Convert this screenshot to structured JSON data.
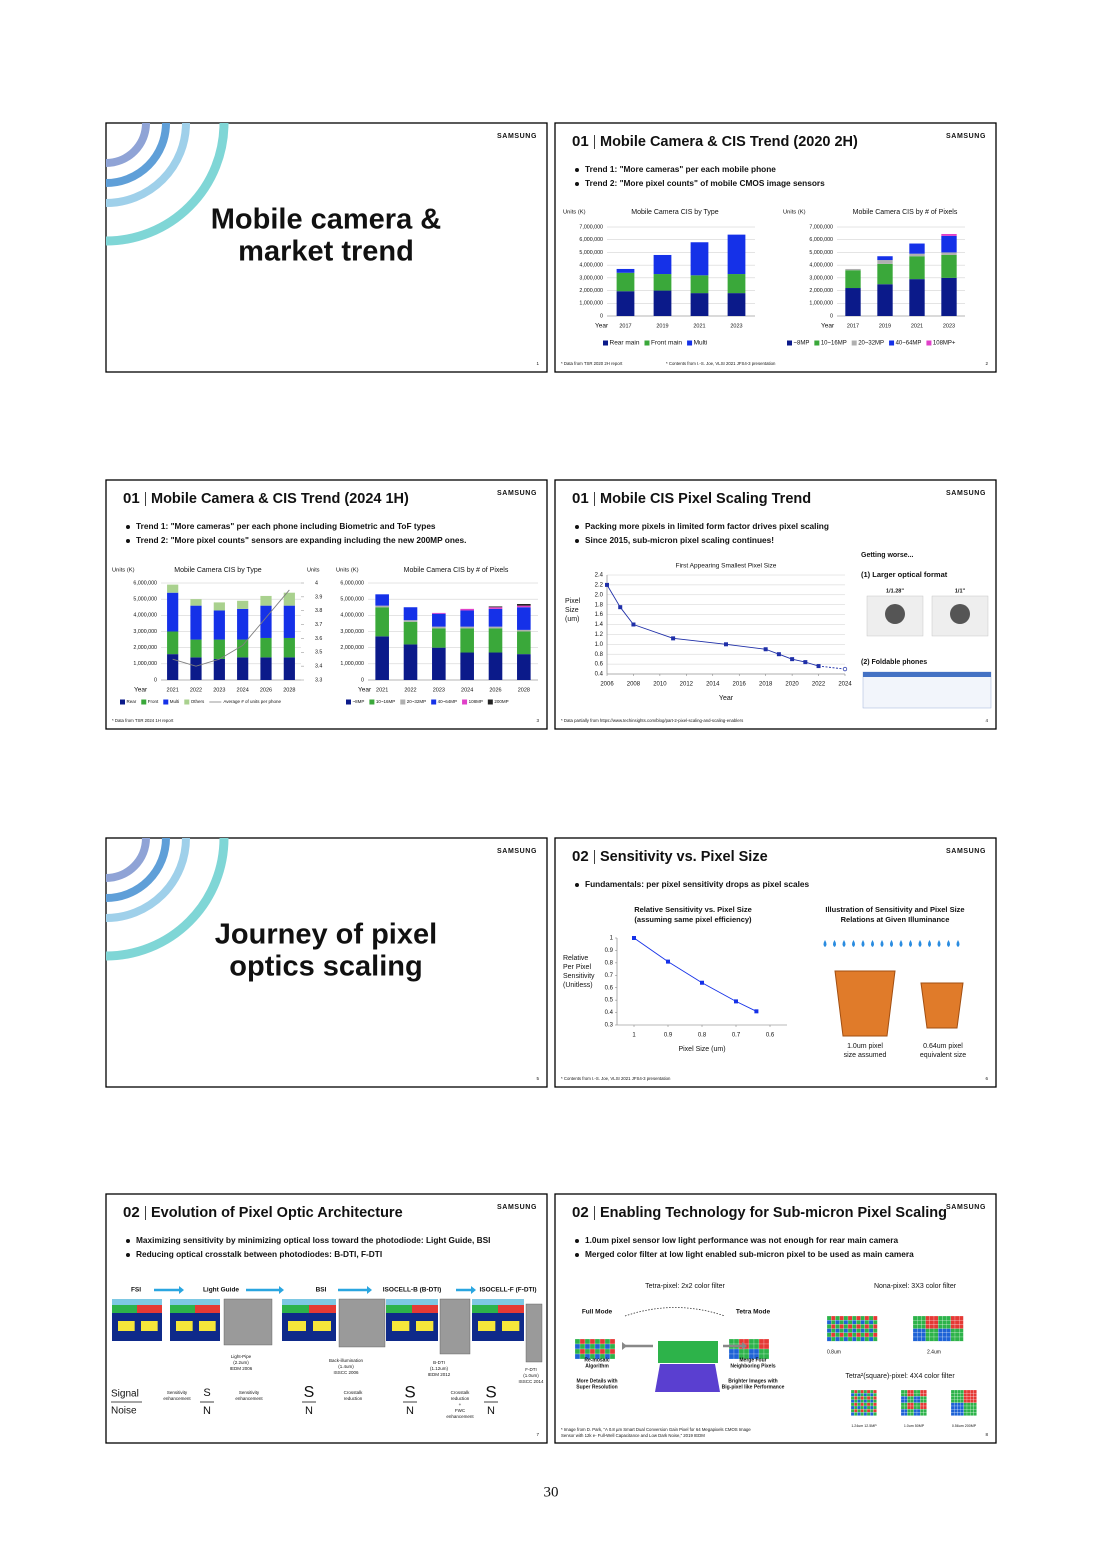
{
  "page_number": "30",
  "slides": [
    {
      "logo": "SAMSUNG",
      "title_lines": [
        "Mobile camera &",
        "market trend"
      ],
      "page": "1"
    },
    {
      "logo": "SAMSUNG",
      "section": "01",
      "title": "Mobile Camera & CIS Trend (2020 2H)",
      "page": "2",
      "bullets": [
        "Trend 1: \"More cameras\" per each mobile phone",
        "Trend 2: \"More pixel counts\" of mobile CMOS image sensors"
      ],
      "charts": [
        {
          "type": "bar",
          "title": "Mobile Camera CIS by Type",
          "y_label": "Units (K)",
          "x_label": "Year",
          "categories": [
            "2017",
            "2019",
            "2021",
            "2023"
          ],
          "series": [
            {
              "name": "Rear main",
              "color": "#0b1a8a",
              "values": [
                1950000,
                2000000,
                1800000,
                1800000
              ]
            },
            {
              "name": "Front main",
              "color": "#3aa83a",
              "values": [
                1450000,
                1300000,
                1400000,
                1500000
              ]
            },
            {
              "name": "Multi",
              "color": "#1531e8",
              "values": [
                300000,
                1500000,
                2600000,
                3100000
              ]
            }
          ],
          "ylim": [
            0,
            7000000
          ],
          "yticks": [
            0,
            {
              "value": 1000000,
              "label": "1,000,000"
            },
            {
              "value": 2000000,
              "label": "2,000,000"
            },
            {
              "value": 3000000,
              "label": "3,000,000"
            },
            {
              "value": 4000000,
              "label": "4,000,000"
            },
            {
              "value": 5000000,
              "label": "5,000,000"
            },
            {
              "value": 6000000,
              "label": "6,000,000"
            },
            {
              "value": 7000000,
              "label": "7,000,000"
            }
          ],
          "grid": true
        },
        {
          "type": "bar",
          "title": "Mobile Camera CIS by # of Pixels",
          "y_label": "Units (K)",
          "x_label": "Year",
          "categories": [
            "2017",
            "2019",
            "2021",
            "2023"
          ],
          "series": [
            {
              "name": "~8MP",
              "color": "#0b1a8a",
              "values": [
                2200000,
                2500000,
                2900000,
                3000000
              ]
            },
            {
              "name": "10~16MP",
              "color": "#3aa83a",
              "values": [
                1400000,
                1600000,
                1800000,
                1800000
              ]
            },
            {
              "name": "20~32MP",
              "color": "#b0b0b0",
              "values": [
                100000,
                300000,
                200000,
                200000
              ]
            },
            {
              "name": "40~64MP",
              "color": "#1531e8",
              "values": [
                0,
                300000,
                800000,
                1300000
              ]
            },
            {
              "name": "108MP+",
              "color": "#e040c8",
              "values": [
                0,
                0,
                0,
                150000
              ]
            }
          ],
          "ylim": [
            0,
            7000000
          ],
          "yticks": [
            0,
            {
              "value": 1000000,
              "label": "1,000,000"
            },
            {
              "value": 2000000,
              "label": "2,000,000"
            },
            {
              "value": 3000000,
              "label": "3,000,000"
            },
            {
              "value": 4000000,
              "label": "4,000,000"
            },
            {
              "value": 5000000,
              "label": "5,000,000"
            },
            {
              "value": 6000000,
              "label": "6,000,000"
            },
            {
              "value": 7000000,
              "label": "7,000,000"
            }
          ],
          "grid": true
        }
      ],
      "footnotes": [
        "* Data from TSR 2020 2H report",
        "* Contents from I.-S. Joe, VLSI 2021 JFS4-3 presentation"
      ]
    },
    {
      "logo": "SAMSUNG",
      "section": "01",
      "title": "Mobile Camera & CIS Trend (2024 1H)",
      "page": "3",
      "bullets": [
        "Trend 1: \"More cameras\" per each phone including Biometric and ToF types",
        "Trend 2: \"More pixel counts\" sensors are expanding including the new 200MP ones."
      ],
      "charts": [
        {
          "type": "bar",
          "title": "Mobile Camera CIS by Type",
          "y_label": "Units (K)",
          "y2_label": "Units",
          "x_label": "Year",
          "categories": [
            "2021",
            "2022",
            "2023",
            "2024",
            "2026",
            "2028"
          ],
          "series": [
            {
              "name": "Rear",
              "color": "#0b1a8a",
              "values": [
                1600000,
                1400000,
                1300000,
                1400000,
                1400000,
                1400000
              ]
            },
            {
              "name": "Front",
              "color": "#3aa83a",
              "values": [
                1400000,
                1100000,
                1200000,
                1100000,
                1200000,
                1200000
              ]
            },
            {
              "name": "Multi",
              "color": "#1531e8",
              "values": [
                2400000,
                2100000,
                1800000,
                1900000,
                2000000,
                2000000
              ]
            },
            {
              "name": "Others",
              "color": "#a9d18e",
              "values": [
                500000,
                400000,
                500000,
                500000,
                600000,
                800000
              ]
            },
            {
              "name": "Average # of units per phone",
              "color": "#7f7f7f",
              "axis": "y2",
              "values": [
                3.45,
                3.4,
                3.45,
                3.55,
                3.75,
                3.95
              ]
            }
          ],
          "ylim": [
            0,
            6000000
          ],
          "yticks": [
            0,
            {
              "value": 1000000,
              "label": "1,000,000"
            },
            {
              "value": 2000000,
              "label": "2,000,000"
            },
            {
              "value": 3000000,
              "label": "3,000,000"
            },
            {
              "value": 4000000,
              "label": "4,000,000"
            },
            {
              "value": 5000000,
              "label": "5,000,000"
            },
            {
              "value": 6000000,
              "label": "6,000,000"
            }
          ],
          "y2lim": [
            3.3,
            4
          ],
          "y2ticks": [
            3.3,
            3.4,
            3.5,
            3.6,
            3.7,
            3.8,
            3.9,
            4
          ],
          "grid": true
        },
        {
          "type": "bar",
          "title": "Mobile Camera CIS by # of Pixels",
          "y_label": "Units (K)",
          "x_label": "Year",
          "categories": [
            "2021",
            "2022",
            "2023",
            "2024",
            "2026",
            "2028"
          ],
          "series": [
            {
              "name": "~8MP",
              "color": "#0b1a8a",
              "values": [
                2700000,
                2200000,
                2000000,
                1700000,
                1700000,
                1600000
              ]
            },
            {
              "name": "10~16MP",
              "color": "#3aa83a",
              "values": [
                1800000,
                1400000,
                1200000,
                1500000,
                1500000,
                1400000
              ]
            },
            {
              "name": "20~32MP",
              "color": "#b0b0b0",
              "values": [
                100000,
                100000,
                100000,
                100000,
                100000,
                100000
              ]
            },
            {
              "name": "40~64MP",
              "color": "#1531e8",
              "values": [
                700000,
                800000,
                800000,
                1000000,
                1100000,
                1400000
              ]
            },
            {
              "name": "108MP",
              "color": "#e040c8",
              "values": [
                0,
                0,
                50000,
                100000,
                100000,
                100000
              ]
            },
            {
              "name": "200MP",
              "color": "#222222",
              "values": [
                0,
                0,
                0,
                0,
                50000,
                100000
              ]
            }
          ],
          "ylim": [
            0,
            6000000
          ],
          "yticks": [
            0,
            {
              "value": 1000000,
              "label": "1,000,000"
            },
            {
              "value": 2000000,
              "label": "2,000,000"
            },
            {
              "value": 3000000,
              "label": "3,000,000"
            },
            {
              "value": 4000000,
              "label": "4,000,000"
            },
            {
              "value": 5000000,
              "label": "5,000,000"
            },
            {
              "value": 6000000,
              "label": "6,000,000"
            }
          ],
          "grid": true
        }
      ],
      "footnotes": [
        "* Data from TSR 2024 1H report"
      ]
    },
    {
      "logo": "SAMSUNG",
      "section": "01",
      "title": "Mobile CIS Pixel Scaling Trend",
      "page": "4",
      "bullets": [
        "Packing more pixels in limited form factor drives pixel scaling",
        "Since 2015, sub-micron pixel scaling continues!"
      ],
      "charts": [
        {
          "type": "line",
          "title": "First Appearing Smallest Pixel Size",
          "y_label_lines": [
            "Pixel",
            "Size",
            "(um)"
          ],
          "x_label": "Year",
          "color": "#1f2fa8",
          "x": [
            2006,
            2007,
            2008,
            2011,
            2015,
            2018,
            2019,
            2020,
            2021,
            2022,
            2024
          ],
          "values": [
            2.2,
            1.75,
            1.4,
            1.12,
            1.0,
            0.9,
            0.8,
            0.7,
            0.64,
            0.56,
            0.5
          ],
          "last_segment_dashed": true,
          "xlim": [
            2006,
            2024
          ],
          "xticks": [
            2006,
            2008,
            2010,
            2012,
            2014,
            2016,
            2018,
            2020,
            2022,
            2024
          ],
          "ylim": [
            0.4,
            2.4
          ],
          "yticks": [
            0.4,
            0.6,
            0.8,
            {
              "value": 1,
              "label": "1.0"
            },
            1.2,
            1.4,
            1.6,
            1.8,
            {
              "value": 2,
              "label": "2.0"
            },
            2.2,
            2.4
          ],
          "grid": true
        }
      ],
      "notes": {
        "heading": "Getting worse...",
        "format_label": "(1) Larger optical format",
        "formats": [
          "1/1.28\"",
          "1/1\""
        ],
        "foldable_label": "(2) Foldable phones"
      },
      "footnotes": [
        "* Data partially from https://www.techinsights.com/blog/part-2-pixel-scaling-and-scaling-enablers"
      ]
    },
    {
      "logo": "SAMSUNG",
      "title_lines": [
        "Journey of pixel",
        "optics scaling"
      ],
      "page": "5"
    },
    {
      "logo": "SAMSUNG",
      "section": "02",
      "title": "Sensitivity vs. Pixel Size",
      "page": "6",
      "bullets": [
        "Fundamentals: per pixel sensitivity drops as pixel scales"
      ],
      "charts": [
        {
          "type": "line",
          "title_lines": [
            "Relative Sensitivity vs. Pixel Size",
            "(assuming same pixel efficiency)"
          ],
          "y_label_lines": [
            "Relative",
            "Per Pixel",
            "Sensitivity",
            "(Unitless)"
          ],
          "x_label": "Pixel Size (um)",
          "color": "#1531e8",
          "x": [
            1,
            0.9,
            0.8,
            0.7,
            0.64
          ],
          "values": [
            1,
            0.81,
            0.64,
            0.49,
            0.41
          ],
          "xlim": [
            1.05,
            0.55
          ],
          "xticks": [
            1,
            0.9,
            0.8,
            0.7,
            0.6
          ],
          "ylim": [
            0.3,
            1
          ],
          "yticks": [
            0.3,
            0.4,
            0.5,
            0.6,
            0.7,
            0.8,
            0.9,
            1
          ],
          "grid": false
        }
      ],
      "illustration": {
        "title_lines": [
          "Illustration of Sensitivity and Pixel Size",
          "Relations at Given Illuminance"
        ],
        "captions": [
          [
            "1.0um pixel",
            "size assumed"
          ],
          [
            "0.64um pixel",
            "equivalent size"
          ]
        ]
      },
      "footnotes": [
        "* Contents from I.-S. Joe, VLSI 2021 JFS4-3 presentation"
      ]
    },
    {
      "logo": "SAMSUNG",
      "section": "02",
      "title": "Evolution of Pixel Optic Architecture",
      "page": "7",
      "bullets": [
        "Maximizing sensitivity by minimizing optical loss toward the photodiode: Light Guide, BSI",
        "Reducing optical crosstalk between photodiodes: B-DTI, F-DTI"
      ],
      "stages": [
        "FSI",
        "Light Guide",
        "BSI",
        "ISOCELL-B (B-DTI)",
        "ISOCELL-F (F-DTI)"
      ],
      "captions": [
        [
          "Light-Pipe",
          "(2.2um)",
          "IEDM 2006"
        ],
        [
          "Back-illumination",
          "(1.4um)",
          "ISSCC 2006"
        ],
        [
          "B-DTI",
          "(1.12um)",
          "IEDM 2012"
        ],
        [
          "F-DTI",
          "(1.0um)",
          "ISSCC 2014"
        ]
      ],
      "signal": "Signal",
      "noise": "Noise",
      "s": "S",
      "n": "N",
      "effects": [
        [
          "Sensitivity",
          "enhancement"
        ],
        [
          "Sensitivity",
          "enhancement"
        ],
        [
          "Crosstalk",
          "reduction"
        ],
        [
          "Crosstalk",
          "reduction",
          "+",
          "FWC",
          "enhancement"
        ]
      ]
    },
    {
      "logo": "SAMSUNG",
      "section": "02",
      "title": "Enabling Technology for Sub-micron Pixel Scaling",
      "page": "8",
      "bullets": [
        "1.0um pixel sensor low light performance was not enough for rear main camera",
        "Merged color filter at low light enabled sub-micron pixel to be used as main camera"
      ],
      "tetra": {
        "title": "Tetra-pixel: 2x2 color filter",
        "full_mode": "Full Mode",
        "tetra_mode": "Tetra Mode",
        "left": [
          "Re-mosaic",
          "Algorithm"
        ],
        "left_note": [
          "More Details with",
          "Super Resolution"
        ],
        "right": [
          "Merge Four",
          "Neighboring Pixels"
        ],
        "right_note": [
          "Brighter Images with",
          "Big-pixel like Performance"
        ]
      },
      "nona": {
        "title": "Nona-pixel: 3X3 color filter",
        "sizes": [
          "0.8um",
          "2.4um"
        ]
      },
      "tetra2": {
        "title": "Tetra²(square)-pixel: 4X4 color filter",
        "captions": [
          "1.24um 12.5MP",
          "1.0um 50MP",
          "0.56um 200MP"
        ]
      },
      "footnote_lines": [
        "* Image from D. Park, \"A 0.8 µm Smart Dual Conversion Gain Pixel for 64 Megapixels CMOS Image",
        "Sensor with 12k e- Full-Well Capacitance and Low Dark Noise,\" 2019 IEDM"
      ]
    }
  ]
}
